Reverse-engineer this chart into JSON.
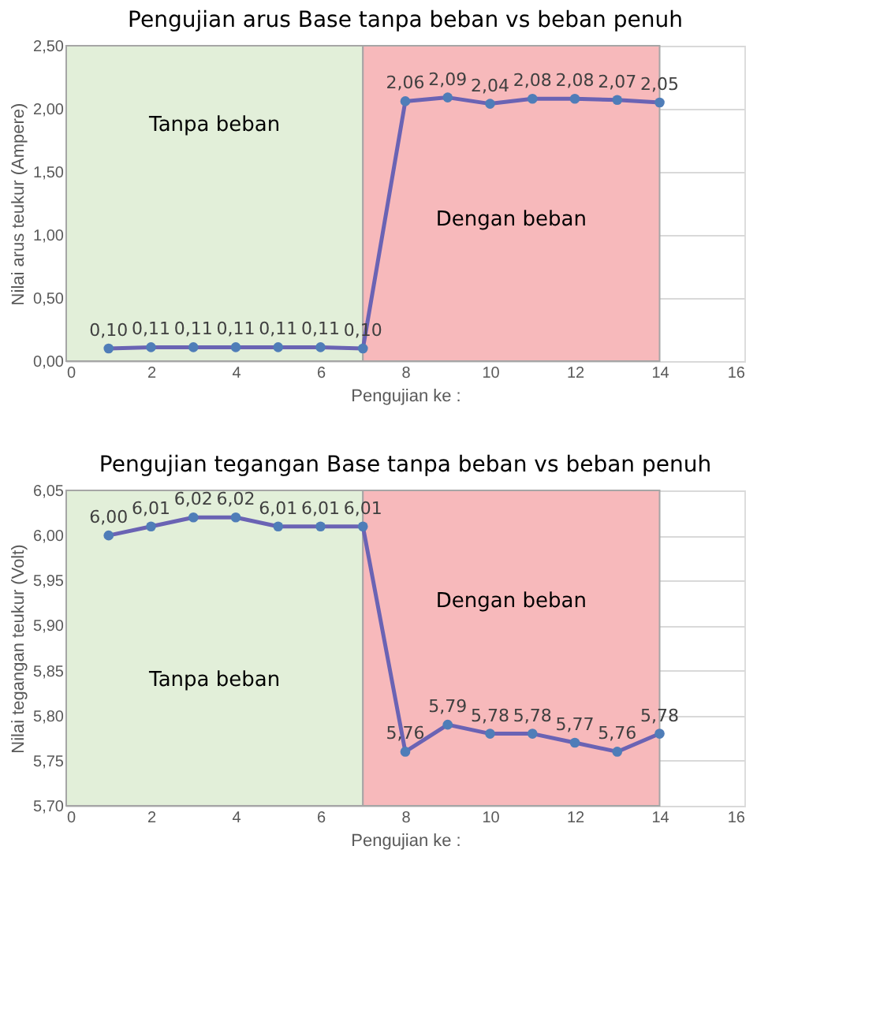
{
  "chart_data": [
    {
      "type": "line",
      "title": "Pengujian arus Base tanpa beban vs beban penuh",
      "xlabel": "Pengujian ke :",
      "ylabel": "Nilai arus teukur (Ampere)",
      "x": [
        1,
        2,
        3,
        4,
        5,
        6,
        7,
        8,
        9,
        10,
        11,
        12,
        13,
        14
      ],
      "series": [
        {
          "color": "#6a63b4",
          "values": [
            0.1,
            0.11,
            0.11,
            0.11,
            0.11,
            0.11,
            0.1,
            2.06,
            2.09,
            2.04,
            2.08,
            2.08,
            2.07,
            2.05
          ],
          "value_labels": [
            "0,10",
            "0,11",
            "0,11",
            "0,11",
            "0,11",
            "0,11",
            "0,10",
            "2,06",
            "2,09",
            "2,04",
            "2,08",
            "2,08",
            "2,07",
            "2,05"
          ]
        }
      ],
      "xlim": [
        0,
        16
      ],
      "xticks": [
        0,
        2,
        4,
        6,
        8,
        10,
        12,
        14,
        16
      ],
      "ylim": [
        0,
        2.5
      ],
      "yticks": [
        {
          "value": 0,
          "label": "0,00"
        },
        {
          "value": 0.5,
          "label": "0,50"
        },
        {
          "value": 1,
          "label": "1,00"
        },
        {
          "value": 1.5,
          "label": "1,50"
        },
        {
          "value": 2,
          "label": "2,00"
        },
        {
          "value": 2.5,
          "label": "2,50"
        }
      ],
      "bands": [
        {
          "axis": "x",
          "from": 0,
          "to": 7,
          "label": "Tanpa beban",
          "color": "#e2efd9"
        },
        {
          "axis": "x",
          "from": 7,
          "to": 14,
          "label": "Dengan beban",
          "color": "#f7b9bb"
        }
      ],
      "grid": "y",
      "marker": "circle",
      "line_style": "solid"
    },
    {
      "type": "line",
      "title": "Pengujian tegangan Base tanpa beban vs beban penuh",
      "xlabel": "Pengujian ke :",
      "ylabel": "Nilai tegangan teukur (Volt)",
      "x": [
        1,
        2,
        3,
        4,
        5,
        6,
        7,
        8,
        9,
        10,
        11,
        12,
        13,
        14
      ],
      "series": [
        {
          "color": "#6a63b4",
          "values": [
            6.0,
            6.01,
            6.02,
            6.02,
            6.01,
            6.01,
            6.01,
            5.76,
            5.79,
            5.78,
            5.78,
            5.77,
            5.76,
            5.78
          ],
          "value_labels": [
            "6,00",
            "6,01",
            "6,02",
            "6,02",
            "6,01",
            "6,01",
            "6,01",
            "5,76",
            "5,79",
            "5,78",
            "5,78",
            "5,77",
            "5,76",
            "5,78"
          ]
        }
      ],
      "xlim": [
        0,
        16
      ],
      "xticks": [
        0,
        2,
        4,
        6,
        8,
        10,
        12,
        14,
        16
      ],
      "ylim": [
        5.7,
        6.05
      ],
      "yticks": [
        {
          "value": 5.7,
          "label": "5,70"
        },
        {
          "value": 5.75,
          "label": "5,75"
        },
        {
          "value": 5.8,
          "label": "5,80"
        },
        {
          "value": 5.85,
          "label": "5,85"
        },
        {
          "value": 5.9,
          "label": "5,90"
        },
        {
          "value": 5.95,
          "label": "5,95"
        },
        {
          "value": 6.0,
          "label": "6,00"
        },
        {
          "value": 6.05,
          "label": "6,05"
        }
      ],
      "bands": [
        {
          "axis": "x",
          "from": 0,
          "to": 7,
          "label": "Tanpa beban",
          "color": "#e2efd9"
        },
        {
          "axis": "x",
          "from": 7,
          "to": 14,
          "label": "Dengan beban",
          "color": "#f7b9bb"
        }
      ],
      "grid": "y",
      "marker": "circle",
      "line_style": "solid"
    }
  ]
}
